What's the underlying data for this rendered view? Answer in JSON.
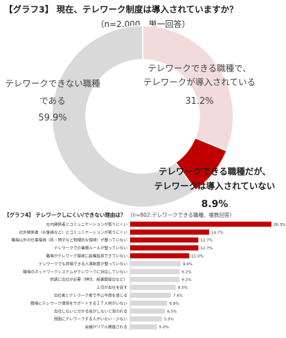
{
  "chart1": {
    "title": "【グラフ3】 現在、テレワーク制度は導入されていますか？",
    "subtitle": "（n=2,000、単一回答）"
  },
  "chart2": {
    "title": "【グラフ4】 テレワークしにくい/できない理由は？",
    "subtitle": "（n=802:テレワークできる職種、複数回答）"
  },
  "colors": {
    "donut_not_possible": "#d9d9d9",
    "donut_possible_introduced": "#f2dcdb",
    "donut_possible_not_introduced": "#c00000",
    "bar_highlight": "#c00000",
    "bar_normal": "#d9d9d9"
  },
  "chart_data": [
    {
      "type": "pie",
      "title": "【グラフ3】 現在、テレワーク制度は導入されていますか？",
      "subtitle": "（n=2,000、単一回答）",
      "slices": [
        {
          "label_lines": [
            "テレワークできる職種で、",
            "テレワークが導入されている"
          ],
          "value": 31.2,
          "value_label": "31.2%",
          "color": "#f2dcdb"
        },
        {
          "label_lines": [
            "テレワークできる職種だが、",
            "テレワークは導入されていない"
          ],
          "value": 8.9,
          "value_label": "8.9%",
          "color": "#c00000"
        },
        {
          "label_lines": [
            "テレワークできない職種",
            "である"
          ],
          "value": 59.9,
          "value_label": "59.9%",
          "color": "#d9d9d9"
        }
      ]
    },
    {
      "type": "bar",
      "orientation": "horizontal",
      "title": "【グラフ4】 テレワークしにくい/できない理由は？",
      "subtitle": "（n=802:テレワークできる職種、複数回答）",
      "xlim": [
        0,
        28
      ],
      "categories": [
        "社内関係者とコミュニケーションが取りにくい",
        "社外関係者（お客様など）とコミュニケーションが取りにくい",
        "職場以外の仕事環境（机・椅子など物理的な環境）が整っていない",
        "テレワークでの業務ルールが整っていない",
        "職場がテレワーク環境に設備投資できていない",
        "テレワークでも評価できる人事制度が整っていない",
        "職場のネットワークシステムがテレワークに対応していない",
        "申請に出社が必要（押印、紙書類提出など）",
        "上司が出社を促す",
        "出社者とテレワーク者で不公平感を感じる",
        "職場にテレワーク環境をサポートするＩＴ人材がいない",
        "出社しないと分かる気がしないと思われる",
        "周囲にテレワークする人がいない・少ない",
        "会議がリアル開催される"
      ],
      "values": [
        26.3,
        14.7,
        12.7,
        12.7,
        11.0,
        9.4,
        9.2,
        9.2,
        8.5,
        7.6,
        6.9,
        6.5,
        5.9,
        5.0
      ],
      "value_labels": [
        "26.3%",
        "14.7%",
        "12.7%",
        "12.7%",
        "11.0%",
        "9.4%",
        "9.2%",
        "9.2%",
        "8.5%",
        "7.6%",
        "6.9%",
        "6.5%",
        "5.9%",
        "5.0%"
      ],
      "highlighted_count": 5
    }
  ]
}
